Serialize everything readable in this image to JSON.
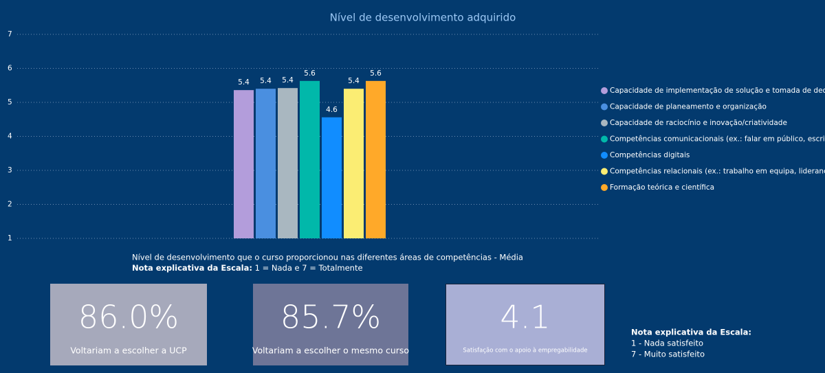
{
  "chart_data": {
    "type": "bar",
    "title": "Nível de desenvolvimento adquirido",
    "categories": [
      "Capacidade de implementação de solução e tomada de decisão",
      "Capacidade de planeamento e organização",
      "Capacidade de raciocínio e inovação/criatividade",
      "Competências comunicacionais (ex.: falar em público, escrita",
      "Competências digitais",
      "Competências relacionais (ex.: trabalho em equipa, liderança",
      "Formação teórica e científica"
    ],
    "values": [
      5.36,
      5.4,
      5.42,
      5.63,
      4.56,
      5.4,
      5.63
    ],
    "value_labels": [
      "5.4",
      "5.4",
      "5.4",
      "5.6",
      "4.6",
      "5.4",
      "5.6"
    ],
    "colors": [
      "#b39ddb",
      "#4a8fe0",
      "#a9b7c0",
      "#01b8aa",
      "#118dff",
      "#fbed73",
      "#ffa929"
    ],
    "ylim": [
      1,
      7
    ],
    "yticks": [
      1,
      2,
      3,
      4,
      5,
      6,
      7
    ],
    "grid": true,
    "caption": "Nível de desenvolvimento que o curso proporcionou nas diferentes áreas de competências - Média",
    "scale_note": {
      "label": "Nota explicativa da Escala:",
      "text": " 1 = Nada e 7 = Totalmente"
    }
  },
  "cards": [
    {
      "value": "86.0%",
      "label": "Voltariam a escolher a UCP"
    },
    {
      "value": "85.7%",
      "label": "Voltariam a escolher o mesmo curso"
    },
    {
      "value": "4.1",
      "label": "Satisfação com o apoio à empregabilidade"
    }
  ],
  "satisfaction_note": {
    "title": "Nota explicativa da Escala:",
    "lines": [
      "1 - Nada satisfeito",
      "7 - Muito satisfeito"
    ]
  }
}
